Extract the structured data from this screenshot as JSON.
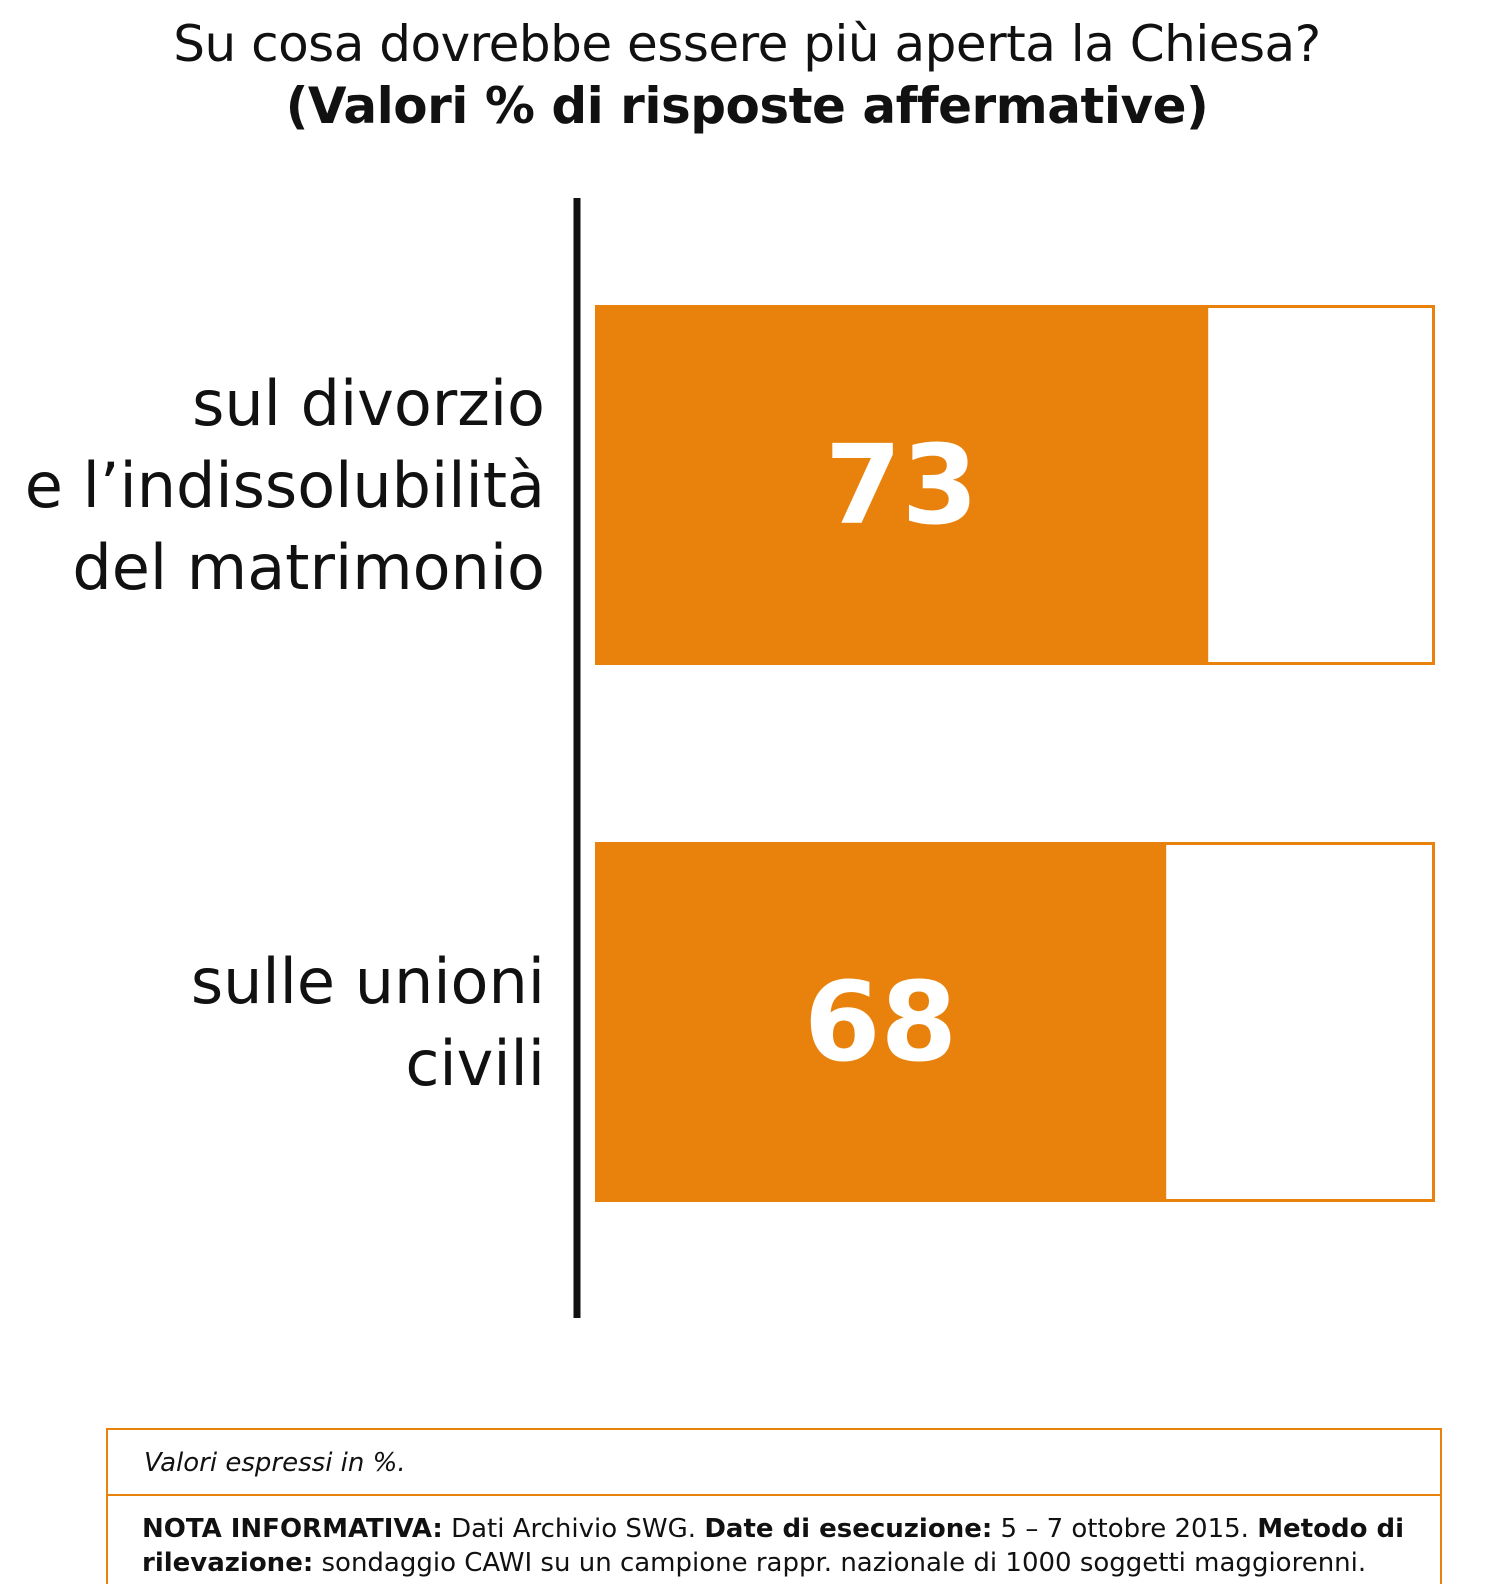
{
  "chart_data": {
    "type": "bar",
    "orientation": "horizontal",
    "title": "Su cosa dovrebbe essere più aperta la Chiesa?",
    "subtitle": "(Valori % di risposte affermative)",
    "categories": [
      [
        "sul divorzio",
        "e l’indissolubilità",
        "del matrimonio"
      ],
      [
        "sulle unioni",
        "civili"
      ]
    ],
    "values": [
      73,
      68
    ],
    "value_labels": [
      "73",
      "68"
    ],
    "xlim": [
      0,
      100
    ],
    "grid": false,
    "legend": "none",
    "bar_color": "#e8820c",
    "remainder_color": "#ffffff",
    "axis_color": "#111111"
  },
  "notes": {
    "units": "Valori espressi in %.",
    "nota_label": "NOTA INFORMATIVA:",
    "nota_text": " Dati Archivio SWG. ",
    "date_label": "Date di esecuzione:",
    "date_text": " 5 – 7 ottobre 2015. ",
    "metodo_label": "Metodo di rilevazione:",
    "metodo_text": " sondaggio CAWI su un campione rappr. nazionale di 1000 soggetti maggiorenni."
  }
}
